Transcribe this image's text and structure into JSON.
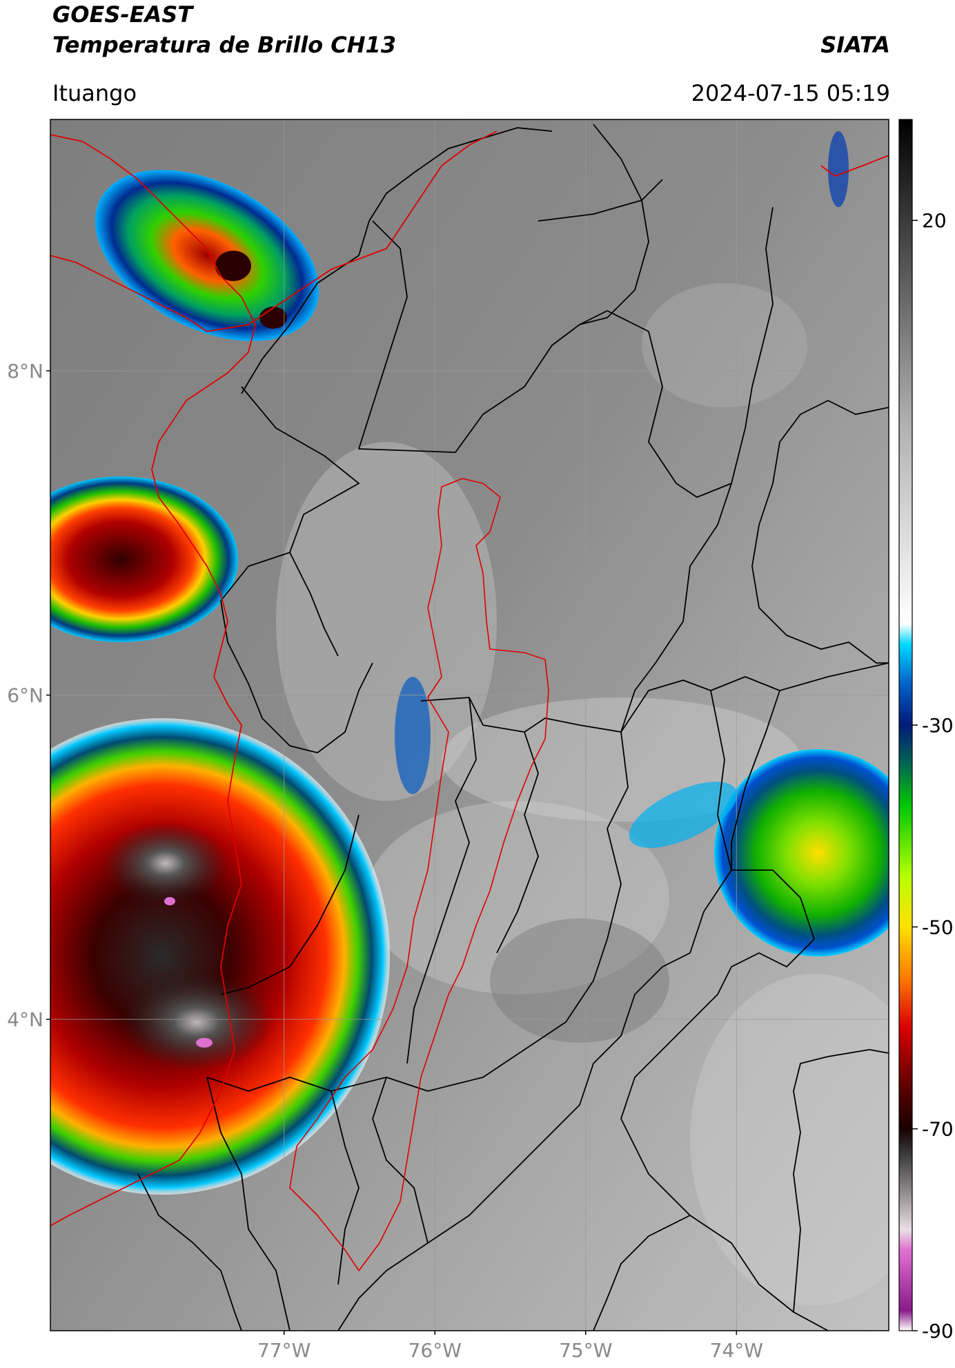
{
  "header": {
    "satellite": "GOES-EAST",
    "product": "Temperatura de Brillo CH13",
    "organization": "SIATA",
    "region": "Ituango",
    "datetime": "2024-07-15 05:19"
  },
  "map": {
    "lon_range": [
      -78.55,
      -72.99
    ],
    "lat_range": [
      2.08,
      9.55
    ],
    "lat_ticks": [
      {
        "value": 8,
        "label": "8°N"
      },
      {
        "value": 6,
        "label": "6°N"
      },
      {
        "value": 4,
        "label": "4°N"
      }
    ],
    "lon_ticks": [
      {
        "value": -77,
        "label": "77°W"
      },
      {
        "value": -76,
        "label": "76°W"
      },
      {
        "value": -75,
        "label": "75°W"
      },
      {
        "value": -74,
        "label": "74°W"
      }
    ]
  },
  "colorbar": {
    "min": -90,
    "max": 30,
    "ticks": [
      {
        "value": 20,
        "label": "20"
      },
      {
        "value": -30,
        "label": "-30"
      },
      {
        "value": -50,
        "label": "-50"
      },
      {
        "value": -70,
        "label": "-70"
      },
      {
        "value": -90,
        "label": "-90"
      }
    ],
    "stops": [
      {
        "value": -90,
        "color": "#ffffff"
      },
      {
        "value": -88,
        "color": "#8a1a8a"
      },
      {
        "value": -82,
        "color": "#e070d0"
      },
      {
        "value": -80,
        "color": "#e8e0e4"
      },
      {
        "value": -76,
        "color": "#8a8587"
      },
      {
        "value": -72,
        "color": "#303030"
      },
      {
        "value": -70,
        "color": "#1a0000"
      },
      {
        "value": -66,
        "color": "#5a0000"
      },
      {
        "value": -60,
        "color": "#d80000"
      },
      {
        "value": -55,
        "color": "#ff7a00"
      },
      {
        "value": -50,
        "color": "#ffe000"
      },
      {
        "value": -45,
        "color": "#b8ff00"
      },
      {
        "value": -38,
        "color": "#00c800"
      },
      {
        "value": -34,
        "color": "#006a50"
      },
      {
        "value": -30,
        "color": "#001a7a"
      },
      {
        "value": -26,
        "color": "#0060c8"
      },
      {
        "value": -22,
        "color": "#00d8ff"
      },
      {
        "value": -20,
        "color": "#ffffff"
      },
      {
        "value": 0,
        "color": "#b0b0b0"
      },
      {
        "value": 30,
        "color": "#000000"
      }
    ]
  },
  "colors": {
    "country_border": "#e00000",
    "department_border": "#000000",
    "basin_border": "#e00000",
    "axis_label": "#888888"
  }
}
